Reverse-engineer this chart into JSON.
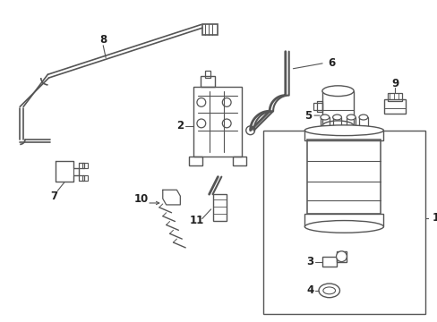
{
  "background_color": "#ffffff",
  "line_color": "#555555",
  "figsize": [
    4.89,
    3.6
  ],
  "dpi": 100,
  "label_fontsize": 8.5,
  "label_color": "#222222"
}
